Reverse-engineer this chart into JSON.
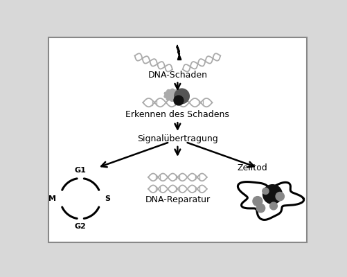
{
  "background_color": "#d8d8d8",
  "inner_bg": "#ffffff",
  "border_color": "#999999",
  "text_color": "#000000",
  "dna_color": "#aaaaaa",
  "labels": {
    "dna_damage": "DNA-Schaden",
    "erkennen": "Erkennen des Schadens",
    "signal": "Signalübertragung",
    "dna_repair": "DNA-Reparatur",
    "zelltod": "Zelltod",
    "G1": "G1",
    "G2": "G2",
    "M": "M",
    "S": "S"
  }
}
